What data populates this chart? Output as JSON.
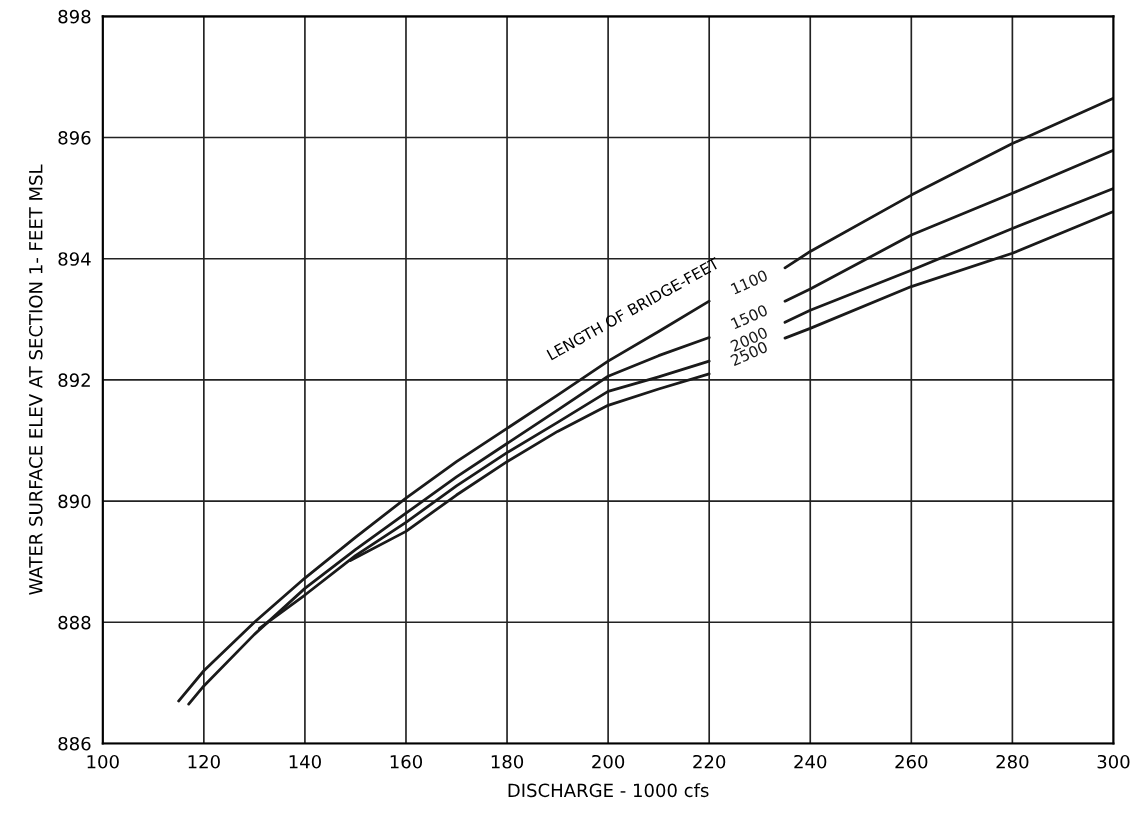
{
  "chart_data": {
    "type": "line",
    "xlabel": "DISCHARGE - 1000 cfs",
    "ylabel": "WATER SURFACE ELEV AT SECTION 1- FEET MSL",
    "annotations": [
      "LENGTH OF BRIDGE-FEET"
    ],
    "xlim": [
      100,
      300
    ],
    "xticks": [
      100,
      120,
      140,
      160,
      180,
      200,
      220,
      240,
      260,
      280,
      300
    ],
    "ylim": [
      886,
      898
    ],
    "yticks": [
      886,
      888,
      890,
      892,
      894,
      896,
      898
    ],
    "grid": true,
    "legend": false,
    "marker": "none",
    "line_style": "solid",
    "series": [
      {
        "name": "1100",
        "color": "#1a1a1a",
        "x": [
          115,
          120,
          130,
          140,
          150,
          160,
          170,
          180,
          190,
          200,
          210,
          220,
          228,
          235,
          240,
          260,
          280,
          300
        ],
        "values": [
          886.7,
          887.2,
          888.0,
          888.73,
          889.4,
          890.05,
          890.65,
          891.2,
          891.75,
          892.31,
          892.8,
          893.3,
          null,
          893.85,
          894.12,
          895.05,
          895.9,
          896.65
        ]
      },
      {
        "name": "1500",
        "color": "#1a1a1a",
        "x": [
          117,
          120,
          130,
          140,
          150,
          160,
          170,
          180,
          190,
          200,
          210,
          220,
          228,
          235,
          240,
          260,
          280,
          300
        ],
        "values": [
          886.65,
          886.95,
          887.8,
          888.56,
          889.2,
          889.8,
          890.4,
          890.95,
          891.5,
          892.06,
          892.4,
          892.7,
          null,
          893.3,
          893.5,
          894.39,
          895.08,
          895.79
        ]
      },
      {
        "name": "2000",
        "color": "#1a1a1a",
        "x": [
          131,
          140,
          150,
          160,
          170,
          180,
          190,
          200,
          210,
          220,
          228,
          235,
          240,
          260,
          280,
          300
        ],
        "values": [
          887.9,
          888.45,
          889.1,
          889.65,
          890.25,
          890.8,
          891.3,
          891.81,
          892.05,
          892.31,
          null,
          892.95,
          893.15,
          893.81,
          894.5,
          895.16
        ]
      },
      {
        "name": "2500",
        "color": "#1a1a1a",
        "x": [
          149,
          160,
          170,
          180,
          190,
          200,
          210,
          220,
          228,
          235,
          240,
          260,
          280,
          300
        ],
        "values": [
          889.02,
          889.5,
          890.1,
          890.65,
          891.15,
          891.58,
          891.85,
          892.1,
          null,
          892.69,
          892.85,
          893.54,
          894.09,
          894.78
        ]
      }
    ]
  }
}
